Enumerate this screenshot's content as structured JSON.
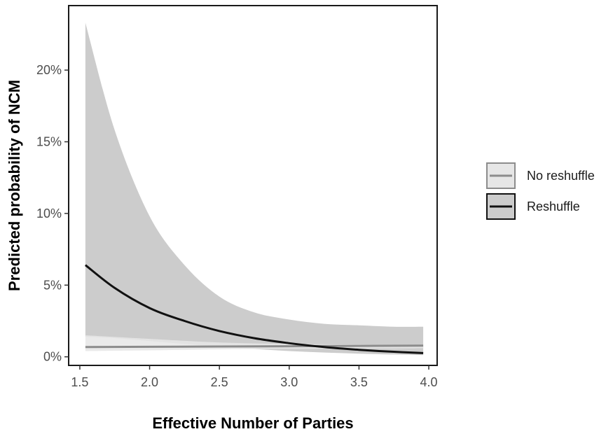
{
  "chart_data": {
    "type": "line",
    "title": "",
    "xlabel": "Effective Number of Parties",
    "ylabel": "Predicted probability of NCM",
    "xlim": [
      1.42,
      4.06
    ],
    "ylim": [
      -0.006,
      0.245
    ],
    "x_ticks": [
      1.5,
      2.0,
      2.5,
      3.0,
      3.5,
      4.0
    ],
    "x_tick_labels": [
      "1.5",
      "2.0",
      "2.5",
      "3.0",
      "3.5",
      "4.0"
    ],
    "y_ticks": [
      0,
      0.05,
      0.1,
      0.15,
      0.2
    ],
    "y_tick_labels": [
      "0%",
      "5%",
      "10%",
      "15%",
      "20%"
    ],
    "grid": false,
    "legend_position": "right",
    "colors": {
      "reshuffle_line": "#111111",
      "reshuffle_ribbon": "#cccccc",
      "no_reshuffle_line": "#8c8c8c",
      "no_reshuffle_ribbon": "#e6e6e6"
    },
    "series": [
      {
        "name": "No reshuffle",
        "x": [
          1.54,
          2.0,
          2.5,
          3.0,
          3.5,
          3.96
        ],
        "values": [
          0.0068,
          0.007,
          0.0072,
          0.0074,
          0.0076,
          0.0078
        ],
        "lower": [
          0.004,
          0.0045,
          0.0052,
          0.0056,
          0.0058,
          0.006
        ],
        "upper": [
          0.015,
          0.0125,
          0.01,
          0.009,
          0.0085,
          0.008
        ]
      },
      {
        "name": "Reshuffle",
        "x": [
          1.54,
          1.75,
          2.0,
          2.25,
          2.5,
          2.75,
          3.0,
          3.25,
          3.5,
          3.75,
          3.96
        ],
        "values": [
          0.064,
          0.048,
          0.034,
          0.025,
          0.018,
          0.013,
          0.0095,
          0.0068,
          0.0049,
          0.0035,
          0.0026
        ],
        "lower": [
          0.014,
          0.013,
          0.011,
          0.009,
          0.007,
          0.0055,
          0.004,
          0.003,
          0.0022,
          0.0016,
          0.0012
        ],
        "upper": [
          0.233,
          0.158,
          0.098,
          0.064,
          0.042,
          0.031,
          0.026,
          0.023,
          0.022,
          0.021,
          0.021
        ]
      }
    ]
  }
}
